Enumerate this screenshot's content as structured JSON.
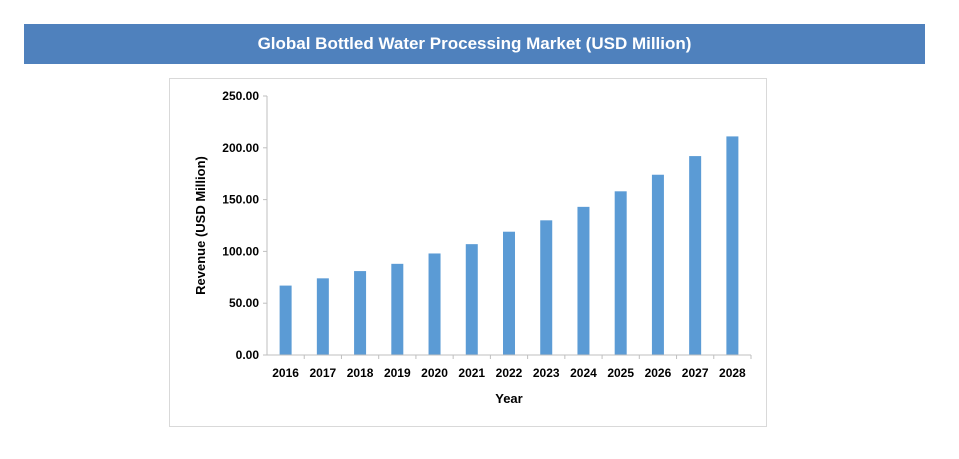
{
  "chart_data": {
    "type": "bar",
    "title": "Global Bottled Water Processing Market (USD Million)",
    "xlabel": "Year",
    "ylabel": "Revenue (USD Million)",
    "categories": [
      "2016",
      "2017",
      "2018",
      "2019",
      "2020",
      "2021",
      "2022",
      "2023",
      "2024",
      "2025",
      "2026",
      "2027",
      "2028"
    ],
    "values": [
      67,
      74,
      81,
      88,
      98,
      107,
      119,
      130,
      143,
      158,
      174,
      192,
      211
    ],
    "ylim": [
      0,
      250
    ],
    "yticks": [
      "0.00",
      "50.00",
      "100.00",
      "150.00",
      "200.00",
      "250.00"
    ],
    "grid": false,
    "bar_color": "#5b9bd5"
  }
}
